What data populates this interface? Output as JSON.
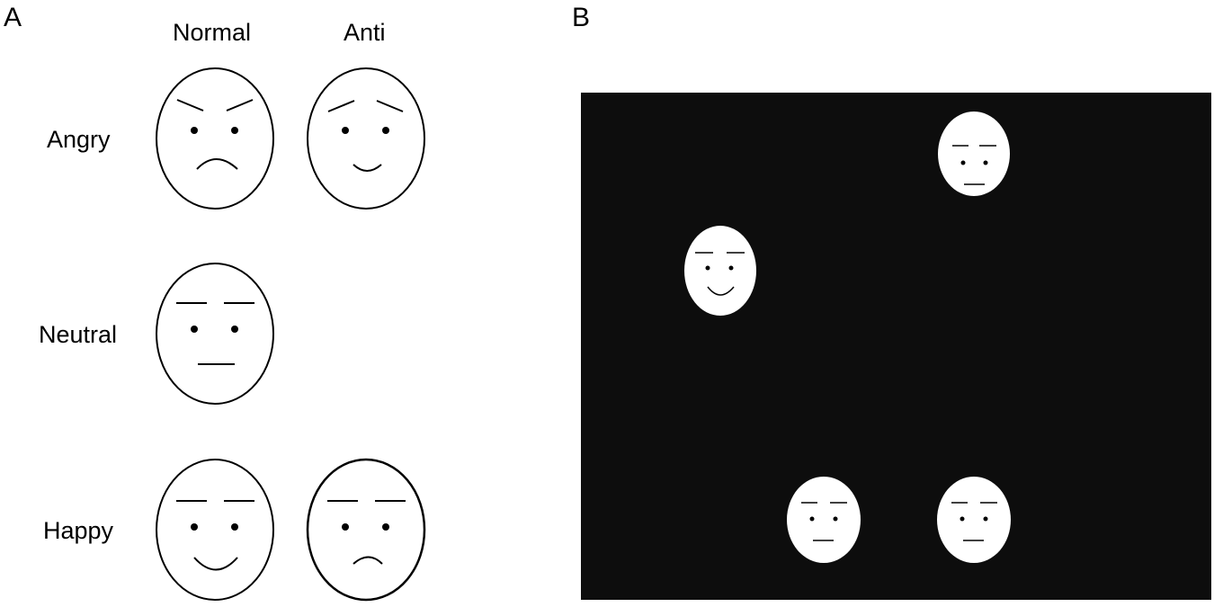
{
  "panel_a": {
    "label": "A",
    "columns": [
      "Normal",
      "Anti"
    ],
    "rows": [
      "Angry",
      "Neutral",
      "Happy"
    ],
    "faces": [
      {
        "row": "Angry",
        "column": "Normal",
        "brows": "angry",
        "mouth": "frown"
      },
      {
        "row": "Angry",
        "column": "Anti",
        "brows": "sad",
        "mouth": "smile"
      },
      {
        "row": "Neutral",
        "column": "Normal",
        "brows": "flat",
        "mouth": "flat"
      },
      {
        "row": "Happy",
        "column": "Normal",
        "brows": "flat",
        "mouth": "smile"
      },
      {
        "row": "Happy",
        "column": "Anti",
        "brows": "flat",
        "mouth": "frown"
      }
    ]
  },
  "panel_b": {
    "label": "B",
    "background_color": "#0d0d0d",
    "face_color": "#ffffff",
    "faces": [
      {
        "expression": "neutral"
      },
      {
        "expression": "happy"
      },
      {
        "expression": "neutral"
      },
      {
        "expression": "neutral"
      }
    ]
  }
}
